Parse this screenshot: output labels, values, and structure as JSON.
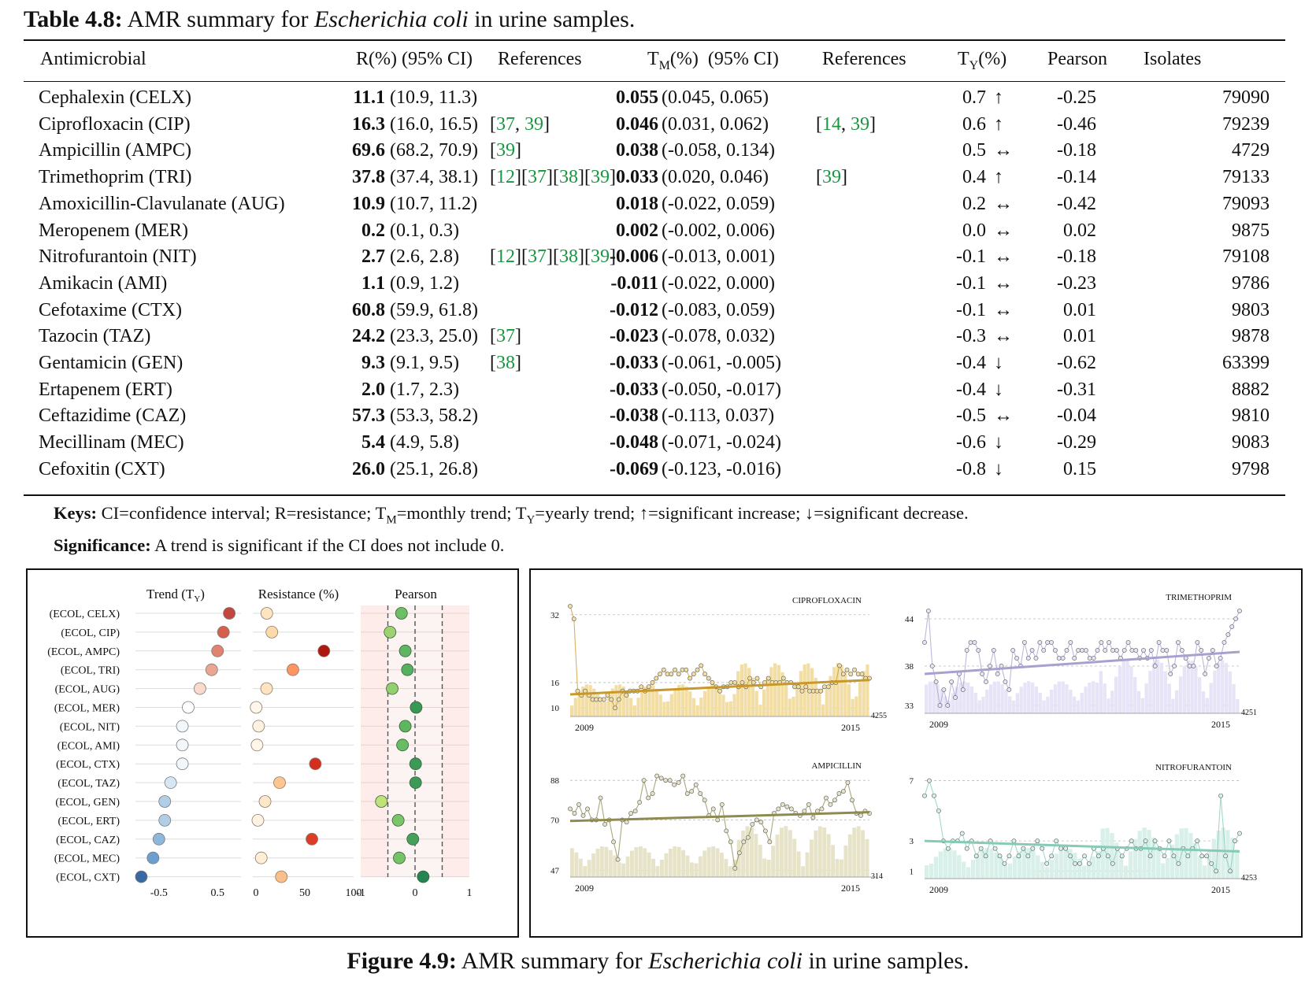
{
  "table_caption": {
    "label": "Table 4.8:",
    "text_before": "AMR summary for ",
    "organism": "Escherichia coli",
    "text_after": " in urine samples."
  },
  "table": {
    "headers": {
      "antimicrobial": "Antimicrobial",
      "r_pre": "R(%)",
      "r_ci": " (95% CI)",
      "refs1": "References",
      "tm_t": "T",
      "tm_sub": "M",
      "tm_rest": "(%)  (95% CI)",
      "refs2": "References",
      "ty_t": "T",
      "ty_sub": "Y",
      "ty_rest": "(%)",
      "pearson": "Pearson",
      "isolates": "Isolates"
    },
    "rows": [
      {
        "name": "Cephalexin (CELX)",
        "r": "11.1",
        "r_ci": "(10.9, 11.3)",
        "refs": [],
        "tm": "0.055",
        "tm_ci": "(0.045, 0.065)",
        "tm_refs": [],
        "ty": "0.7",
        "arrow": "↑",
        "pearson": "-0.25",
        "isolates": "79090"
      },
      {
        "name": "Ciprofloxacin (CIP)",
        "r": "16.3",
        "r_ci": "(16.0, 16.5)",
        "refs": [
          "[",
          "37",
          ", ",
          "39",
          "]"
        ],
        "tm": "0.046",
        "tm_ci": "(0.031, 0.062)",
        "tm_refs": [
          "[",
          "14",
          ", ",
          "39",
          "]"
        ],
        "ty": "0.6",
        "arrow": "↑",
        "pearson": "-0.46",
        "isolates": "79239"
      },
      {
        "name": "Ampicillin (AMPC)",
        "r": "69.6",
        "r_ci": "(68.2, 70.9)",
        "refs": [
          "[",
          "39",
          "]"
        ],
        "tm": "0.038",
        "tm_ci": "(-0.058, 0.134)",
        "tm_refs": [],
        "ty": "0.5",
        "arrow": "↔",
        "pearson": "-0.18",
        "isolates": "4729"
      },
      {
        "name": "Trimethoprim (TRI)",
        "r": "37.8",
        "r_ci": "(37.4, 38.1)",
        "refs": [
          "[",
          "12",
          "][",
          "37",
          "][",
          "38",
          "][",
          "39",
          "]"
        ],
        "tm": "0.033",
        "tm_ci": "(0.020, 0.046)",
        "tm_refs": [
          "[",
          "39",
          "]"
        ],
        "ty": "0.4",
        "arrow": "↑",
        "pearson": "-0.14",
        "isolates": "79133"
      },
      {
        "name": "Amoxicillin-Clavulanate (AUG)",
        "r": "10.9",
        "r_ci": "(10.7, 11.2)",
        "refs": [],
        "tm": "0.018",
        "tm_ci": "(-0.022, 0.059)",
        "tm_refs": [],
        "ty": "0.2",
        "arrow": "↔",
        "pearson": "-0.42",
        "isolates": "79093"
      },
      {
        "name": "Meropenem (MER)",
        "r": "0.2",
        "r_ci": "(0.1, 0.3)",
        "refs": [],
        "tm": "0.002",
        "tm_ci": "(-0.002, 0.006)",
        "tm_refs": [],
        "ty": "0.0",
        "arrow": "↔",
        "pearson": "0.02",
        "isolates": "9875"
      },
      {
        "name": "Nitrofurantoin (NIT)",
        "r": "2.7",
        "r_ci": "(2.6, 2.8)",
        "refs": [
          "[",
          "12",
          "][",
          "37",
          "][",
          "38",
          "][",
          "39",
          "]"
        ],
        "tm": "-0.006",
        "tm_ci": "(-0.013, 0.001)",
        "tm_refs": [],
        "ty": "-0.1",
        "arrow": "↔",
        "pearson": "-0.18",
        "isolates": "79108"
      },
      {
        "name": "Amikacin (AMI)",
        "r": "1.1",
        "r_ci": "(0.9, 1.2)",
        "refs": [],
        "tm": "-0.011",
        "tm_ci": "(-0.022, 0.000)",
        "tm_refs": [],
        "ty": "-0.1",
        "arrow": "↔",
        "pearson": "-0.23",
        "isolates": "9786"
      },
      {
        "name": "Cefotaxime (CTX)",
        "r": "60.8",
        "r_ci": "(59.9, 61.8)",
        "refs": [],
        "tm": "-0.012",
        "tm_ci": "(-0.083, 0.059)",
        "tm_refs": [],
        "ty": "-0.1",
        "arrow": "↔",
        "pearson": "0.01",
        "isolates": "9803"
      },
      {
        "name": "Tazocin (TAZ)",
        "r": "24.2",
        "r_ci": "(23.3, 25.0)",
        "refs": [
          "[",
          "37",
          "]"
        ],
        "tm": "-0.023",
        "tm_ci": "(-0.078, 0.032)",
        "tm_refs": [],
        "ty": "-0.3",
        "arrow": "↔",
        "pearson": "0.01",
        "isolates": "9878"
      },
      {
        "name": "Gentamicin (GEN)",
        "r": "9.3",
        "r_ci": "(9.1, 9.5)",
        "refs": [
          "[",
          "38",
          "]"
        ],
        "tm": "-0.033",
        "tm_ci": "(-0.061, -0.005)",
        "tm_refs": [],
        "ty": "-0.4",
        "arrow": "↓",
        "pearson": "-0.62",
        "isolates": "63399"
      },
      {
        "name": "Ertapenem (ERT)",
        "r": "2.0",
        "r_ci": "(1.7, 2.3)",
        "refs": [],
        "tm": "-0.033",
        "tm_ci": "(-0.050, -0.017)",
        "tm_refs": [],
        "ty": "-0.4",
        "arrow": "↓",
        "pearson": "-0.31",
        "isolates": "8882"
      },
      {
        "name": "Ceftazidime (CAZ)",
        "r": "57.3",
        "r_ci": "(53.3, 58.2)",
        "refs": [],
        "tm": "-0.038",
        "tm_ci": "(-0.113, 0.037)",
        "tm_refs": [],
        "ty": "-0.5",
        "arrow": "↔",
        "pearson": "-0.04",
        "isolates": "9810"
      },
      {
        "name": "Mecillinam (MEC)",
        "r": "5.4",
        "r_ci": "(4.9, 5.8)",
        "refs": [],
        "tm": "-0.048",
        "tm_ci": "(-0.071, -0.024)",
        "tm_refs": [],
        "ty": "-0.6",
        "arrow": "↓",
        "pearson": "-0.29",
        "isolates": "9083"
      },
      {
        "name": "Cefoxitin (CXT)",
        "r": "26.0",
        "r_ci": "(25.1, 26.8)",
        "refs": [],
        "tm": "-0.069",
        "tm_ci": "(-0.123, -0.016)",
        "tm_refs": [],
        "ty": "-0.8",
        "arrow": "↓",
        "pearson": "0.15",
        "isolates": "9798"
      }
    ]
  },
  "keys": {
    "keys_label": "Keys:",
    "keys_text_1": " CI=confidence interval; R=resistance; T",
    "keys_sub_m": "M",
    "keys_text_2": "=monthly trend; T",
    "keys_sub_y": "Y",
    "keys_text_3": "=yearly trend; ↑=significant increase; ↓=significant decrease.",
    "sig_label": "Significance:",
    "sig_text": " A trend is significant if the CI does not include 0."
  },
  "chart_data": [
    {
      "type": "scatter",
      "panel": "dot-summary",
      "titles": [
        "Trend (T",
        "Y",
        ")",
        "Resistance (%)",
        "Pearson"
      ],
      "categories": [
        "(ECOL, CELX)",
        "(ECOL, CIP)",
        "(ECOL, AMPC)",
        "(ECOL, TRI)",
        "(ECOL, AUG)",
        "(ECOL, MER)",
        "(ECOL, NIT)",
        "(ECOL, AMI)",
        "(ECOL, CTX)",
        "(ECOL, TAZ)",
        "(ECOL, GEN)",
        "(ECOL, ERT)",
        "(ECOL, CAZ)",
        "(ECOL, MEC)",
        "(ECOL, CXT)"
      ],
      "trend": [
        0.7,
        0.6,
        0.5,
        0.4,
        0.2,
        0.0,
        -0.1,
        -0.1,
        -0.1,
        -0.3,
        -0.4,
        -0.4,
        -0.5,
        -0.6,
        -0.8
      ],
      "resistance": [
        11.1,
        16.3,
        69.6,
        37.8,
        10.9,
        0.2,
        2.7,
        1.1,
        60.8,
        24.2,
        9.3,
        2.0,
        57.3,
        5.4,
        26.0
      ],
      "pearson": [
        -0.25,
        -0.46,
        -0.18,
        -0.14,
        -0.42,
        0.02,
        -0.18,
        -0.23,
        0.01,
        0.01,
        -0.62,
        -0.31,
        -0.04,
        -0.29,
        0.15
      ],
      "trend_ticks": [
        "-0.5",
        "0.5"
      ],
      "resistance_ticks": [
        "0",
        "50",
        "100"
      ],
      "pearson_ticks": [
        "-1",
        "0",
        "1"
      ],
      "trend_xlim": [
        -0.9,
        0.9
      ],
      "resistance_xlim": [
        0,
        100
      ],
      "pearson_xlim": [
        -1,
        1
      ],
      "pearson_guides": [
        -0.5,
        0,
        0.5
      ]
    },
    {
      "type": "line",
      "panel": "time-series",
      "charts": [
        {
          "title": "CIPROFLOXACIN",
          "color": "#c9982a",
          "fill": "#f2dea4",
          "ylim": [
            8,
            34
          ],
          "yticks": [
            "32",
            "16",
            "10"
          ],
          "ytick_values": [
            32,
            16,
            10
          ],
          "xlabels": [
            "2009",
            "2015"
          ],
          "count": "4255",
          "values": [
            34,
            31,
            14,
            13,
            14,
            13,
            12,
            12,
            12,
            12,
            13,
            12,
            10,
            12,
            14,
            13,
            14,
            14,
            14,
            15,
            14,
            15,
            16,
            17,
            18,
            19,
            18,
            18,
            19,
            18,
            19,
            19,
            17,
            18,
            19,
            20,
            18,
            17,
            16,
            15,
            14,
            15,
            15,
            16,
            16,
            15,
            16,
            15,
            17,
            16,
            17,
            15,
            16,
            17,
            16,
            16,
            16,
            17,
            16,
            16,
            15,
            15,
            14,
            15,
            14,
            14,
            14,
            14,
            15,
            15,
            16,
            16,
            20,
            18,
            19,
            18,
            19,
            18,
            18,
            17,
            17
          ],
          "trend": [
            13.2,
            16.6
          ]
        },
        {
          "title": "TRIMETHOPRIM",
          "color": "#a7a1cf",
          "fill": "#e6e4f6",
          "ylim": [
            32,
            46
          ],
          "yticks": [
            "44",
            "38",
            "33"
          ],
          "ytick_values": [
            44,
            38,
            33
          ],
          "xlabels": [
            "2009",
            "2015"
          ],
          "count": "4251",
          "values": [
            41,
            45,
            38,
            36,
            33,
            35,
            33,
            36,
            34,
            37,
            35,
            40,
            41,
            41,
            40,
            37,
            36,
            38,
            40,
            37,
            38,
            36,
            35,
            40,
            39,
            38,
            41,
            39,
            40,
            39,
            41,
            40,
            41,
            41,
            40,
            39,
            39,
            40,
            41,
            39,
            40,
            40,
            40,
            39,
            39,
            40,
            41,
            40,
            41,
            40,
            40,
            39,
            40,
            41,
            40,
            40,
            39,
            40,
            39,
            40,
            38,
            41,
            40,
            40,
            37,
            38,
            41,
            40,
            39,
            38,
            38,
            41,
            40,
            37,
            39,
            40,
            38,
            39,
            41,
            42,
            43,
            44,
            45
          ],
          "trend": [
            37.0,
            39.8
          ]
        },
        {
          "title": "AMPICILLIN",
          "color": "#8e8b51",
          "fill": "#e6e3c8",
          "ylim": [
            44,
            92
          ],
          "yticks": [
            "88",
            "70",
            "47"
          ],
          "ytick_values": [
            88,
            70,
            47
          ],
          "xlabels": [
            "2009",
            "2015"
          ],
          "count": "314",
          "values": [
            75,
            73,
            77,
            72,
            75,
            70,
            70,
            80,
            68,
            70,
            60,
            52,
            70,
            69,
            73,
            74,
            78,
            88,
            80,
            82,
            90,
            89,
            88,
            88,
            86,
            87,
            90,
            82,
            83,
            86,
            82,
            79,
            72,
            75,
            70,
            77,
            65,
            60,
            48,
            55,
            60,
            62,
            68,
            70,
            69,
            65,
            60,
            73,
            75,
            77,
            76,
            75,
            73,
            72,
            74,
            77,
            71,
            74,
            75,
            80,
            77,
            79,
            82,
            83,
            87,
            79,
            73,
            72,
            74,
            73
          ],
          "trend": [
            69.5,
            73.5
          ]
        },
        {
          "title": "NITROFURANTOIN",
          "color": "#86cbb7",
          "fill": "#d8f0e9",
          "ylim": [
            0.5,
            7.5
          ],
          "yticks": [
            "7",
            "3",
            "1"
          ],
          "ytick_values": [
            7,
            3,
            1
          ],
          "xlabels": [
            "2009",
            "2015"
          ],
          "count": "4253",
          "values": [
            6,
            7,
            6,
            5,
            3,
            2.5,
            3,
            3,
            3.5,
            2.5,
            3,
            2,
            2.5,
            2,
            3,
            2.5,
            2,
            1.5,
            2,
            3,
            2,
            2.5,
            2,
            2.5,
            3,
            2.5,
            1.5,
            2,
            3,
            2.5,
            2.5,
            2,
            1.5,
            1.5,
            2,
            1.5,
            2.5,
            2,
            2.5,
            2,
            1.5,
            2.5,
            2,
            2.5,
            3,
            2.5,
            2.5,
            3,
            2,
            3,
            2.5,
            2,
            3,
            2,
            1.5,
            2.5,
            2,
            2.5,
            3,
            2,
            2,
            1.5,
            1,
            6,
            2,
            1,
            3,
            3.5
          ],
          "trend": [
            3.0,
            2.3
          ]
        }
      ]
    }
  ],
  "figure_caption": {
    "label": "Figure 4.9:",
    "text_before": "AMR summary for ",
    "organism": "Escherichia coli",
    "text_after": " in urine samples."
  }
}
